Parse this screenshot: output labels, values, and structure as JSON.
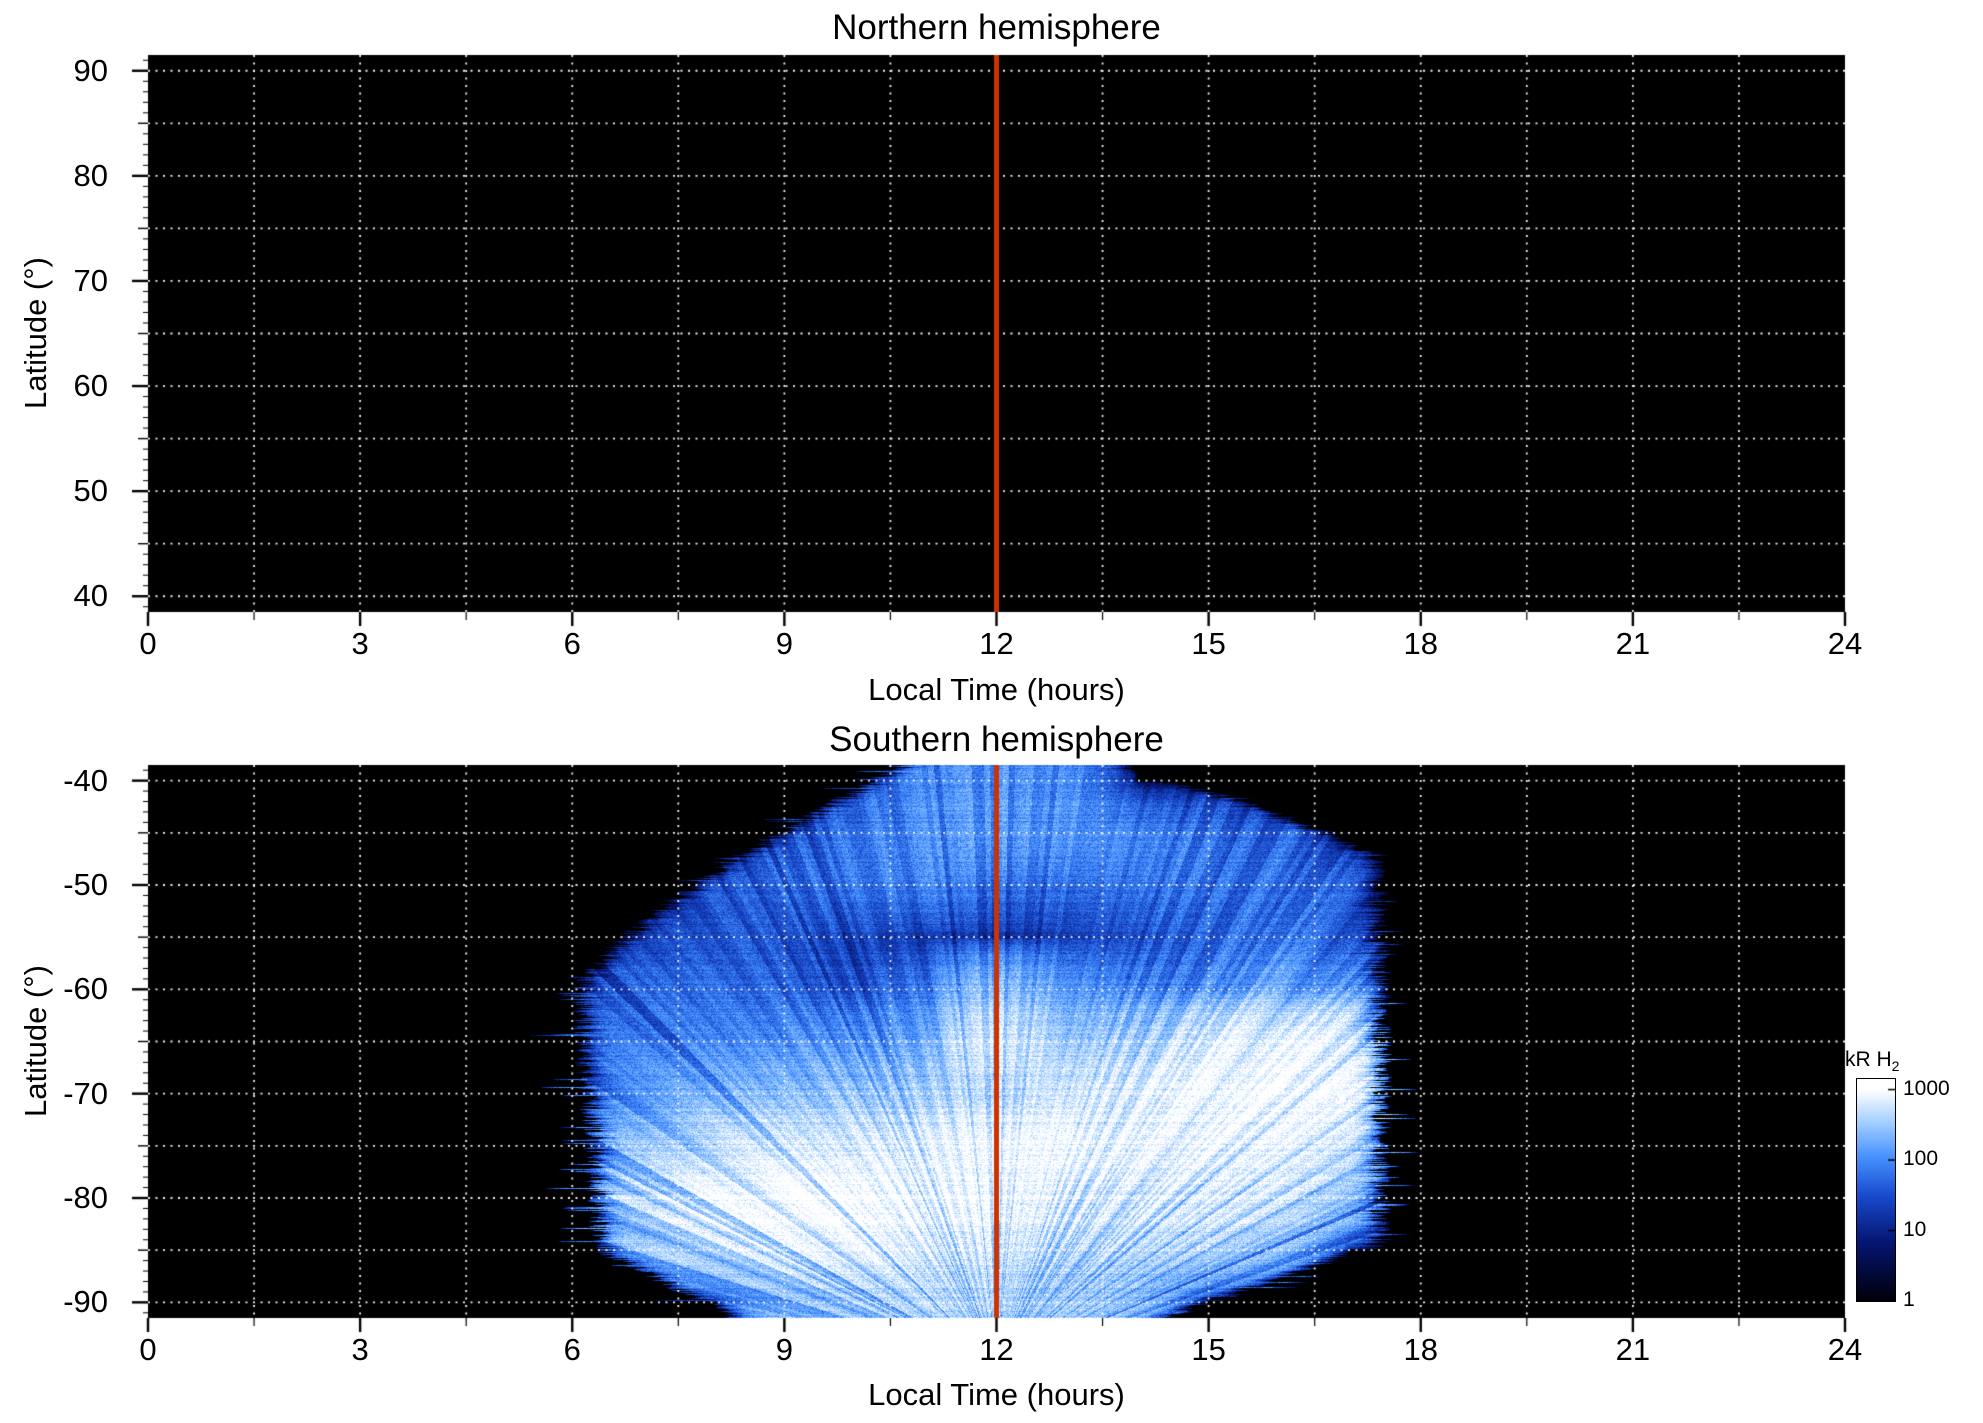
{
  "styles": {
    "plot_background": "#000000",
    "grid_color": "#ffffff",
    "axis_color": "#000000",
    "noon_line_color": "#cc3300",
    "colormap_low": "#000000",
    "colormap_mid": "#1a4bcc",
    "colormap_high": "#ffffff"
  },
  "panels": [
    {
      "title": "Northern hemisphere",
      "xlabel": "Local Time (hours)",
      "ylabel": "Latitude (°)",
      "x_ticks": [
        "0",
        "3",
        "6",
        "9",
        "12",
        "15",
        "18",
        "21",
        "24"
      ],
      "y_ticks": [
        "90",
        "80",
        "70",
        "60",
        "50",
        "40"
      ]
    },
    {
      "title": "Southern hemisphere",
      "xlabel": "Local Time (hours)",
      "ylabel": "Latitude (°)",
      "x_ticks": [
        "0",
        "3",
        "6",
        "9",
        "12",
        "15",
        "18",
        "21",
        "24"
      ],
      "y_ticks": [
        "-40",
        "-50",
        "-60",
        "-70",
        "-80",
        "-90"
      ]
    }
  ],
  "colorbar": {
    "label": "kR H",
    "label_sub": "2",
    "tick_labels": [
      "1000",
      "100",
      "10",
      "1"
    ]
  },
  "chart_data": [
    {
      "type": "heatmap",
      "title": "Northern hemisphere",
      "xlabel": "Local Time (hours)",
      "ylabel": "Latitude (°)",
      "x_range": [
        0,
        24
      ],
      "y_range": [
        40,
        90
      ],
      "x_tick_values": [
        0,
        3,
        6,
        9,
        12,
        15,
        18,
        21,
        24
      ],
      "y_tick_values": [
        90,
        80,
        70,
        60,
        50,
        40
      ],
      "grid": {
        "style": "dotted",
        "color": "#ffffff",
        "x_spacing_hours": 1.5,
        "y_spacing_degrees": 5
      },
      "annotations": [
        {
          "type": "vline",
          "x": 12,
          "color": "#cc3300"
        }
      ],
      "values": "no emission data - entire panel at background level (black)"
    },
    {
      "type": "heatmap",
      "title": "Southern hemisphere",
      "xlabel": "Local Time (hours)",
      "ylabel": "Latitude (°)",
      "x_range": [
        0,
        24
      ],
      "y_range": [
        -90,
        -40
      ],
      "x_tick_values": [
        0,
        3,
        6,
        9,
        12,
        15,
        18,
        21,
        24
      ],
      "y_tick_values": [
        -40,
        -50,
        -60,
        -70,
        -80,
        -90
      ],
      "grid": {
        "style": "dotted",
        "color": "#ffffff",
        "x_spacing_hours": 1.5,
        "y_spacing_degrees": 5
      },
      "annotations": [
        {
          "type": "vline",
          "x": 12,
          "color": "#cc3300"
        }
      ],
      "colorbar": {
        "label": "kR H2",
        "scale": "log",
        "min": 1,
        "max": 1000
      },
      "coverage": "emission observed between ~6 h and ~17.5 h local time; envelope narrows to ~10.5-14 h at -40 deg and to ~8-15 h near the pole; brightest (~1000 kR) band sweeps from (-80 deg, 8-11 h) up to (-65 deg, 15-17 h) with an isolated bright patch near (12 h, -63 deg)",
      "grid_hours": [
        0,
        1,
        2,
        3,
        4,
        5,
        6,
        7,
        8,
        9,
        10,
        11,
        12,
        13,
        14,
        15,
        16,
        17,
        18,
        19,
        20,
        21,
        22,
        23,
        24
      ],
      "grid_latitudes": [
        -40,
        -45,
        -50,
        -55,
        -60,
        -65,
        -70,
        -75,
        -80,
        -85,
        -90
      ],
      "values_kR": [
        [
          0,
          0,
          0,
          0,
          0,
          0,
          0,
          0,
          0,
          0,
          30,
          80,
          120,
          90,
          0,
          0,
          0,
          0,
          0,
          0,
          0,
          0,
          0,
          0,
          0
        ],
        [
          0,
          0,
          0,
          0,
          0,
          0,
          0,
          0,
          0,
          30,
          60,
          90,
          130,
          100,
          80,
          60,
          50,
          0,
          0,
          0,
          0,
          0,
          0,
          0,
          0
        ],
        [
          0,
          0,
          0,
          0,
          0,
          0,
          0,
          0,
          30,
          50,
          60,
          70,
          60,
          50,
          60,
          70,
          60,
          40,
          0,
          0,
          0,
          0,
          0,
          0,
          0
        ],
        [
          0,
          0,
          0,
          0,
          0,
          0,
          0,
          20,
          30,
          30,
          20,
          12,
          10,
          15,
          25,
          50,
          60,
          40,
          0,
          0,
          0,
          0,
          0,
          0,
          0
        ],
        [
          0,
          0,
          0,
          0,
          0,
          0,
          30,
          40,
          50,
          40,
          30,
          60,
          250,
          100,
          80,
          100,
          150,
          100,
          0,
          0,
          0,
          0,
          0,
          0,
          0
        ],
        [
          0,
          0,
          0,
          0,
          0,
          0,
          50,
          60,
          80,
          100,
          120,
          150,
          700,
          250,
          400,
          700,
          900,
          700,
          0,
          0,
          0,
          0,
          0,
          0,
          0
        ],
        [
          0,
          0,
          0,
          0,
          0,
          0,
          80,
          100,
          150,
          200,
          250,
          300,
          350,
          500,
          800,
          1000,
          1000,
          800,
          0,
          0,
          0,
          0,
          0,
          0,
          0
        ],
        [
          0,
          0,
          0,
          0,
          0,
          0,
          100,
          250,
          400,
          500,
          600,
          700,
          900,
          1000,
          900,
          800,
          700,
          400,
          0,
          0,
          0,
          0,
          0,
          0,
          0
        ],
        [
          0,
          0,
          0,
          0,
          0,
          0,
          150,
          400,
          800,
          1000,
          1000,
          900,
          800,
          700,
          600,
          500,
          400,
          200,
          0,
          0,
          0,
          0,
          0,
          0,
          0
        ],
        [
          0,
          0,
          0,
          0,
          0,
          0,
          80,
          200,
          400,
          600,
          600,
          500,
          500,
          400,
          300,
          250,
          150,
          0,
          0,
          0,
          0,
          0,
          0,
          0,
          0
        ],
        [
          0,
          0,
          0,
          0,
          0,
          0,
          0,
          0,
          0,
          150,
          250,
          300,
          300,
          250,
          150,
          0,
          0,
          0,
          0,
          0,
          0,
          0,
          0,
          0,
          0
        ]
      ]
    }
  ]
}
